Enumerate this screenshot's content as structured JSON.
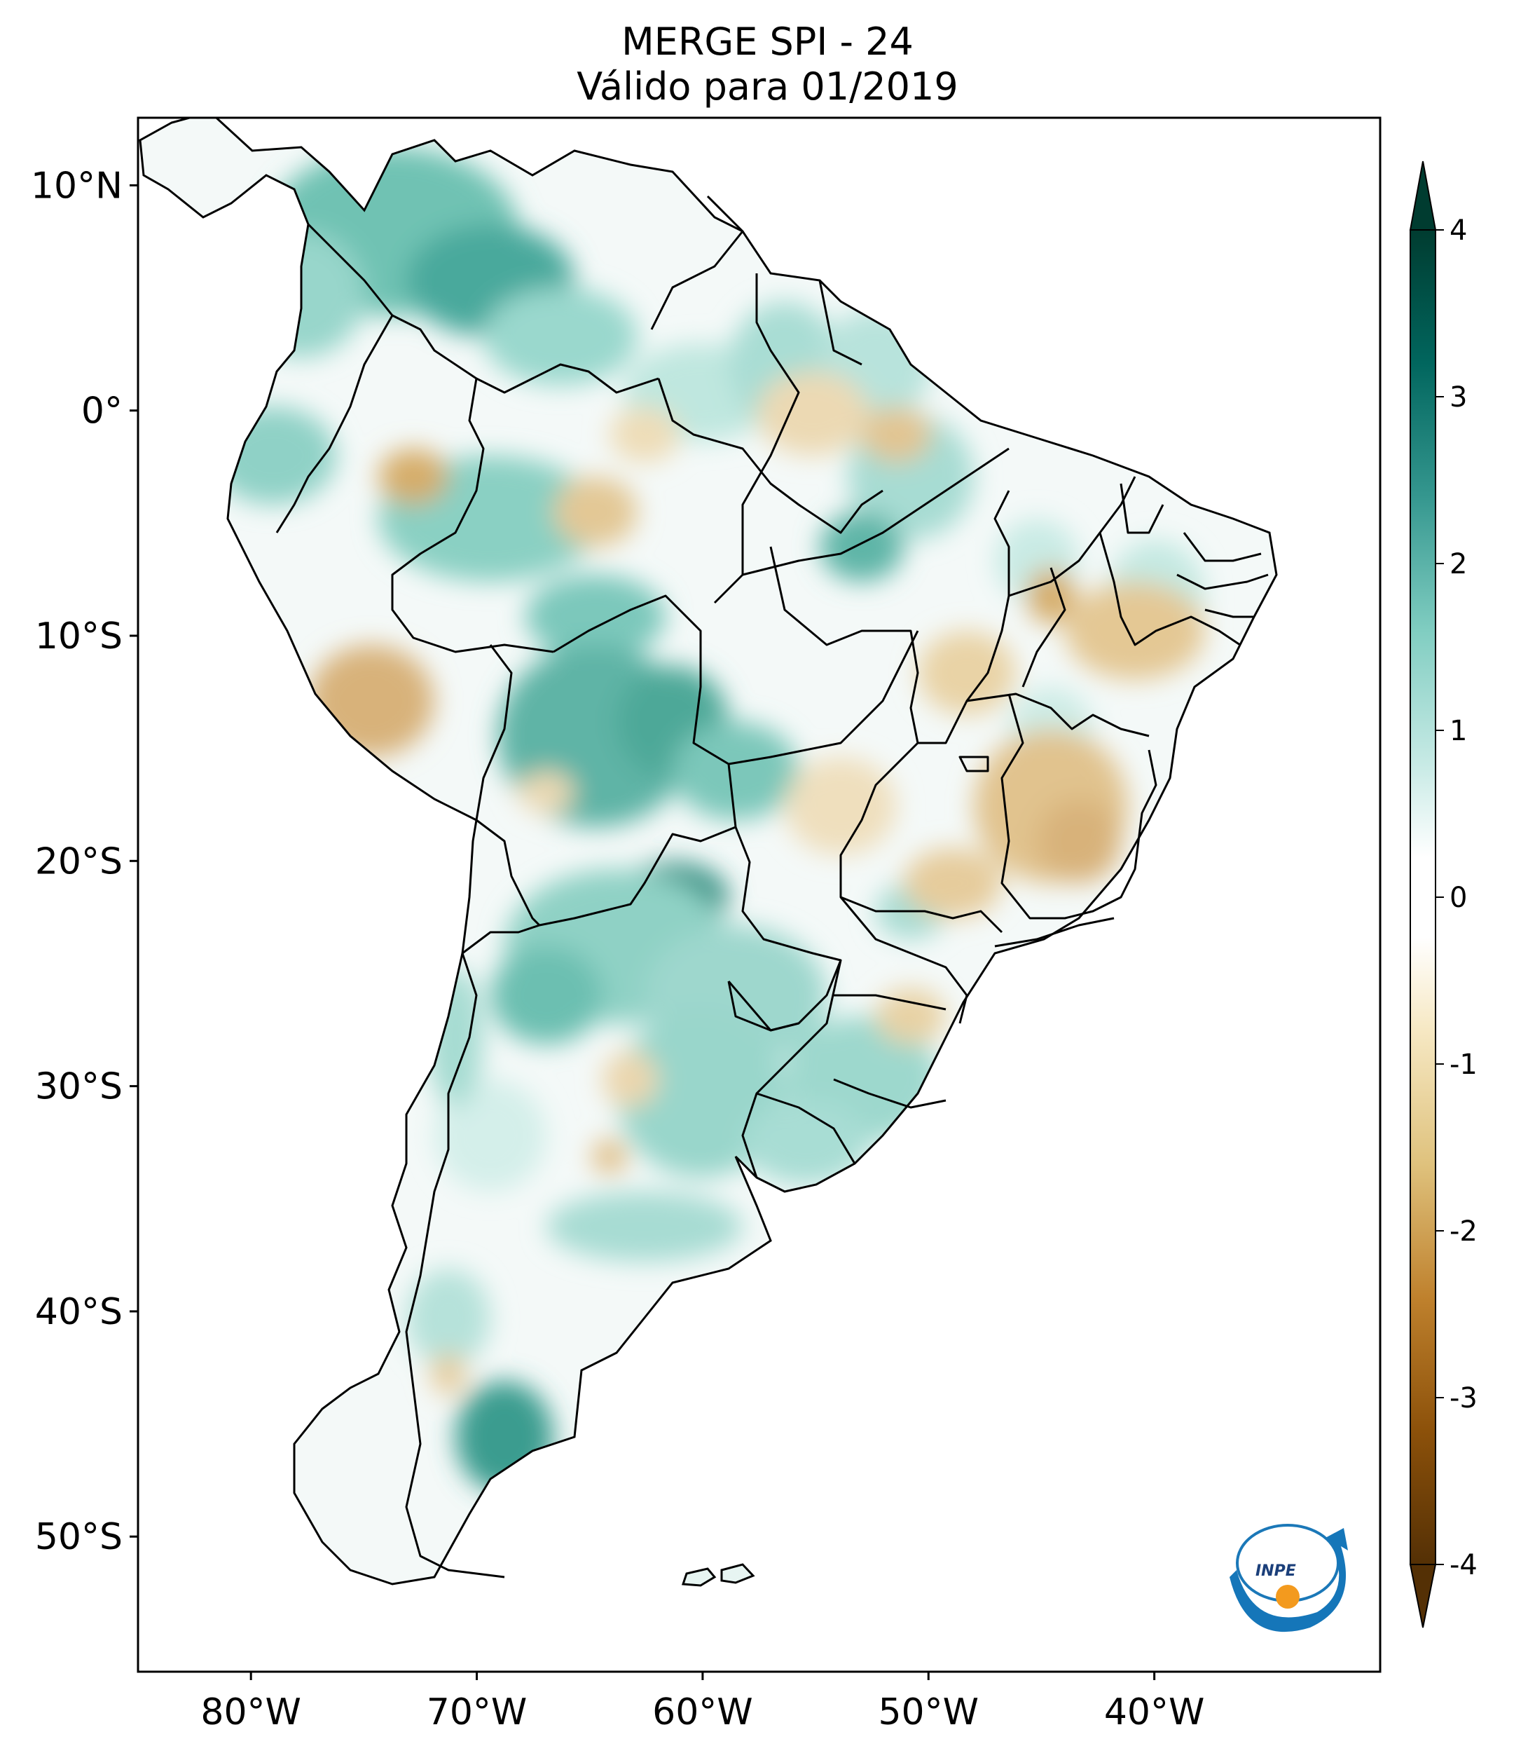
{
  "title": {
    "line1": "MERGE   SPI - 24",
    "line2": "Válido para 01/2019"
  },
  "map": {
    "lon_range": [
      -85,
      -30
    ],
    "lat_range": [
      -56,
      13
    ],
    "lat_ticks": [
      {
        "value": 10,
        "label": "10°N"
      },
      {
        "value": 0,
        "label": "0°"
      },
      {
        "value": -10,
        "label": "10°S"
      },
      {
        "value": -20,
        "label": "20°S"
      },
      {
        "value": -30,
        "label": "30°S"
      },
      {
        "value": -40,
        "label": "40°S"
      },
      {
        "value": -50,
        "label": "50°S"
      }
    ],
    "lon_ticks": [
      {
        "value": -80,
        "label": "80°W"
      },
      {
        "value": -70,
        "label": "70°W"
      },
      {
        "value": -60,
        "label": "60°W"
      },
      {
        "value": -50,
        "label": "50°W"
      },
      {
        "value": -40,
        "label": "40°W"
      }
    ]
  },
  "colorbar": {
    "range": [
      -4,
      4
    ],
    "extend": "both",
    "ticks": [
      {
        "value": 4,
        "label": "4"
      },
      {
        "value": 3,
        "label": "3"
      },
      {
        "value": 2,
        "label": "2"
      },
      {
        "value": 1,
        "label": "1"
      },
      {
        "value": 0,
        "label": "0"
      },
      {
        "value": -1,
        "label": "-1"
      },
      {
        "value": -2,
        "label": "-2"
      },
      {
        "value": -3,
        "label": "-3"
      },
      {
        "value": -4,
        "label": "-4"
      }
    ],
    "colors": [
      "#543005",
      "#8c510a",
      "#bf812d",
      "#dfc27d",
      "#f6e8c3",
      "#f5f5f5",
      "#c7eae5",
      "#80cdc1",
      "#35978f",
      "#01665e",
      "#003c30"
    ]
  },
  "logo": {
    "text": "INPE"
  }
}
